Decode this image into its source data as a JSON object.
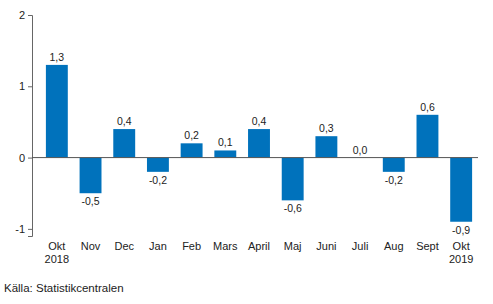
{
  "chart_data": {
    "type": "bar",
    "categories": [
      "Okt\n2018",
      "Nov",
      "Dec",
      "Jan",
      "Feb",
      "Mars",
      "April",
      "Maj",
      "Juni",
      "Juli",
      "Aug",
      "Sept",
      "Okt\n2019"
    ],
    "values": [
      1.3,
      -0.5,
      0.4,
      -0.2,
      0.2,
      0.1,
      0.4,
      -0.6,
      0.3,
      0.0,
      -0.2,
      0.6,
      -0.9
    ],
    "value_labels": [
      "1,3",
      "-0,5",
      "0,4",
      "-0,2",
      "0,2",
      "0,1",
      "0,4",
      "-0,6",
      "0,3",
      "0,0",
      "-0,2",
      "0,6",
      "-0,9"
    ],
    "color": "#0072bc",
    "ylim": [
      -1.1,
      2
    ],
    "yticks": [
      -1,
      0,
      1,
      2
    ],
    "grid": false,
    "data_labels": true,
    "source": "Källa: Statistikcentralen"
  }
}
